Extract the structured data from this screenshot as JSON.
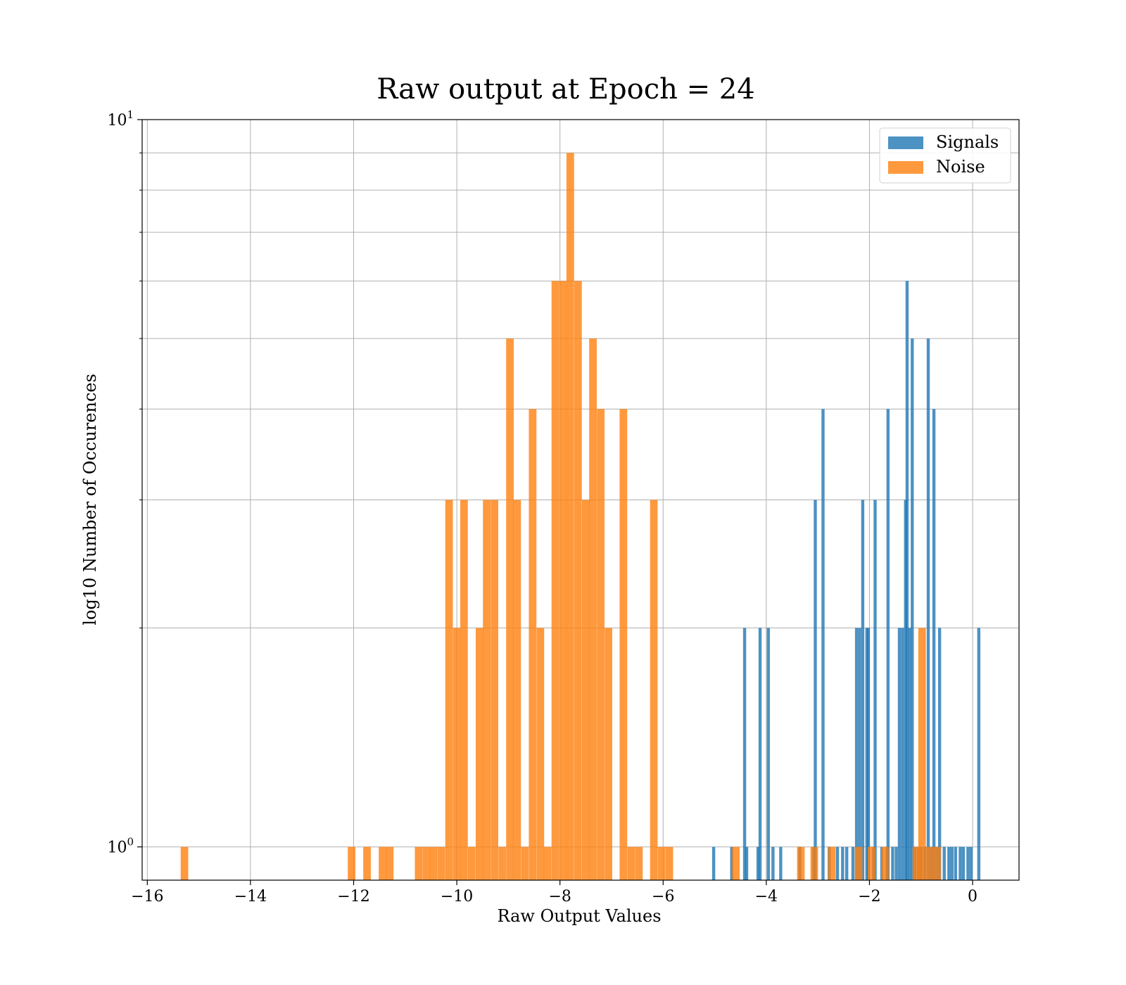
{
  "chart_data": {
    "type": "bar",
    "title": "Raw output at Epoch = 24",
    "xlabel": "Raw Output Values",
    "ylabel": "log10 Number of Occurences",
    "xlim": [
      -16.1,
      0.9
    ],
    "ylim": [
      0.9,
      10
    ],
    "yscale": "log",
    "grid": true,
    "legend_position": "top-right",
    "x_ticks": [
      {
        "value": -16,
        "label": "−16"
      },
      {
        "value": -14,
        "label": "−14"
      },
      {
        "value": -12,
        "label": "−12"
      },
      {
        "value": -10,
        "label": "−10"
      },
      {
        "value": -8,
        "label": "−8"
      },
      {
        "value": -6,
        "label": "−6"
      },
      {
        "value": -4,
        "label": "−4"
      },
      {
        "value": -2,
        "label": "−2"
      },
      {
        "value": 0,
        "label": "0"
      }
    ],
    "y_major_ticks": [
      {
        "value": 1,
        "base": "10",
        "exp": "0"
      },
      {
        "value": 10,
        "base": "10",
        "exp": "1"
      }
    ],
    "y_minor_ticks": [
      2,
      3,
      4,
      5,
      6,
      7,
      8,
      9
    ],
    "series": [
      {
        "name": "Signals",
        "color": "#1f77b4",
        "bin_width": 0.06,
        "bins": [
          [
            -5.02,
            1
          ],
          [
            -4.67,
            1
          ],
          [
            -4.42,
            2
          ],
          [
            -4.38,
            1
          ],
          [
            -4.16,
            1
          ],
          [
            -4.12,
            2
          ],
          [
            -3.96,
            2
          ],
          [
            -3.87,
            1
          ],
          [
            -3.72,
            1
          ],
          [
            -3.35,
            1
          ],
          [
            -3.08,
            1
          ],
          [
            -3.05,
            3
          ],
          [
            -2.9,
            4
          ],
          [
            -2.78,
            1
          ],
          [
            -2.62,
            1
          ],
          [
            -2.52,
            1
          ],
          [
            -2.44,
            1
          ],
          [
            -2.32,
            1
          ],
          [
            -2.25,
            2
          ],
          [
            -2.19,
            2
          ],
          [
            -2.13,
            3
          ],
          [
            -2.05,
            2
          ],
          [
            -2.02,
            2
          ],
          [
            -1.92,
            1
          ],
          [
            -1.89,
            3
          ],
          [
            -1.76,
            1
          ],
          [
            -1.66,
            1
          ],
          [
            -1.64,
            4
          ],
          [
            -1.55,
            1
          ],
          [
            -1.48,
            1
          ],
          [
            -1.42,
            2
          ],
          [
            -1.36,
            2
          ],
          [
            -1.3,
            3
          ],
          [
            -1.27,
            6
          ],
          [
            -1.22,
            2
          ],
          [
            -1.17,
            5
          ],
          [
            -1.12,
            1
          ],
          [
            -1.05,
            1
          ],
          [
            -1.0,
            1
          ],
          [
            -0.93,
            1
          ],
          [
            -0.86,
            5
          ],
          [
            -0.8,
            1
          ],
          [
            -0.75,
            4
          ],
          [
            -0.69,
            1
          ],
          [
            -0.64,
            2
          ],
          [
            -0.55,
            1
          ],
          [
            -0.46,
            1
          ],
          [
            -0.4,
            1
          ],
          [
            -0.33,
            1
          ],
          [
            -0.24,
            1
          ],
          [
            -0.18,
            1
          ],
          [
            -0.09,
            1
          ],
          [
            -0.03,
            1
          ],
          [
            0.12,
            2
          ]
        ]
      },
      {
        "name": "Noise",
        "color": "#ff7f0e",
        "bin_width": 0.147,
        "bins": [
          [
            -15.28,
            1
          ],
          [
            -12.04,
            1
          ],
          [
            -11.74,
            1
          ],
          [
            -11.44,
            1
          ],
          [
            -11.3,
            1
          ],
          [
            -10.74,
            1
          ],
          [
            -10.59,
            1
          ],
          [
            -10.45,
            1
          ],
          [
            -10.3,
            1
          ],
          [
            -10.15,
            3
          ],
          [
            -10.0,
            2
          ],
          [
            -9.86,
            3
          ],
          [
            -9.71,
            1
          ],
          [
            -9.56,
            2
          ],
          [
            -9.42,
            3
          ],
          [
            -9.27,
            3
          ],
          [
            -9.12,
            1
          ],
          [
            -8.97,
            5
          ],
          [
            -8.83,
            3
          ],
          [
            -8.68,
            1
          ],
          [
            -8.53,
            4
          ],
          [
            -8.38,
            2
          ],
          [
            -8.24,
            1
          ],
          [
            -8.09,
            6
          ],
          [
            -7.94,
            6
          ],
          [
            -7.8,
            9
          ],
          [
            -7.65,
            6
          ],
          [
            -7.5,
            3
          ],
          [
            -7.36,
            5
          ],
          [
            -7.21,
            4
          ],
          [
            -7.06,
            2
          ],
          [
            -6.77,
            4
          ],
          [
            -6.62,
            1
          ],
          [
            -6.47,
            1
          ],
          [
            -6.18,
            3
          ],
          [
            -6.03,
            1
          ],
          [
            -5.88,
            1
          ],
          [
            -4.59,
            1
          ],
          [
            -3.33,
            1
          ],
          [
            -3.07,
            1
          ],
          [
            -2.73,
            1
          ],
          [
            -2.21,
            1
          ],
          [
            -1.96,
            1
          ],
          [
            -1.7,
            1
          ],
          [
            -1.09,
            1
          ],
          [
            -0.98,
            2
          ],
          [
            -0.83,
            1
          ],
          [
            -0.69,
            1
          ]
        ]
      }
    ]
  }
}
